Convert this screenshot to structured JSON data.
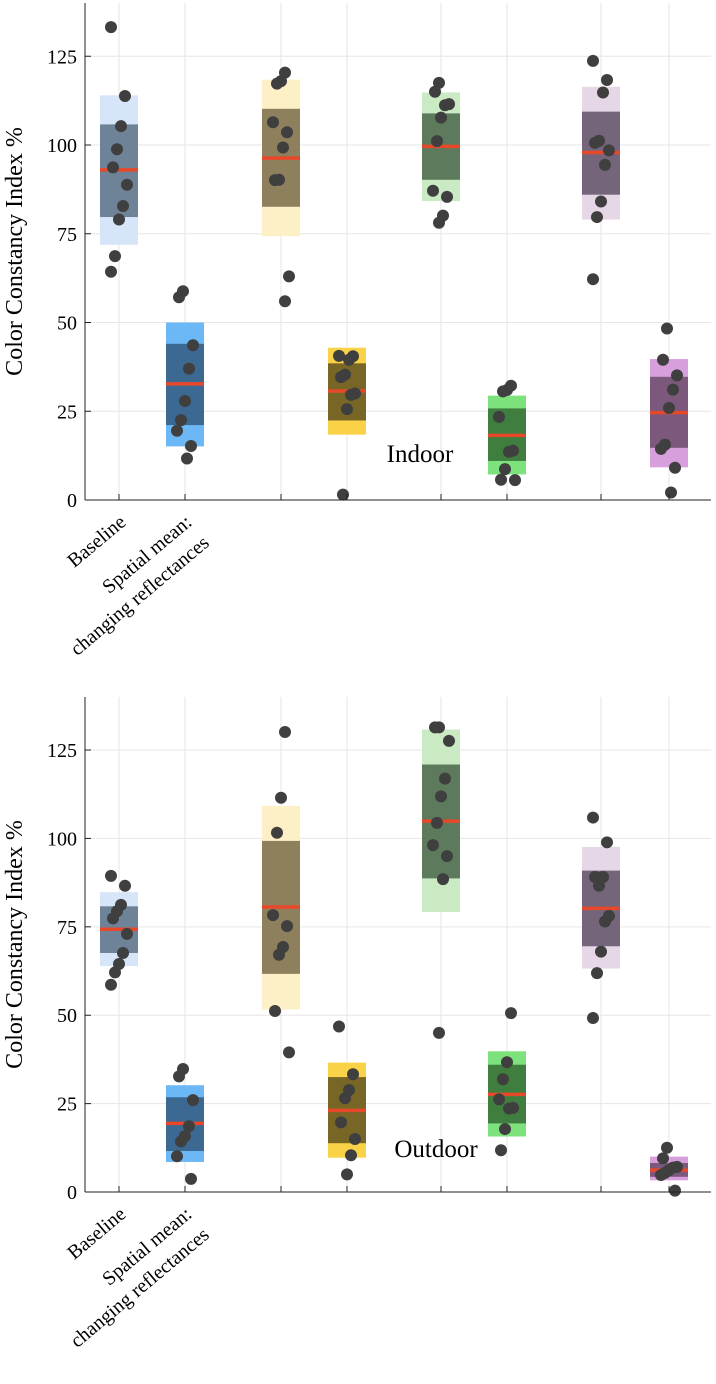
{
  "chart_data": [
    {
      "type": "box",
      "annotation": "Indoor",
      "ylabel": "Color Constancy Index %",
      "ylim": [
        0,
        140
      ],
      "yticks": [
        0,
        25,
        50,
        75,
        100,
        125
      ],
      "categories": [
        "Baseline",
        "Spatial mean: changing reflectances",
        "",
        "",
        "",
        "",
        "",
        ""
      ],
      "groups": [
        {
          "color": "#d6e6f8",
          "inner": "#6e8398",
          "outer": [
            71.9,
            114.0
          ],
          "iqr": [
            79.7,
            105.8
          ],
          "median": 93.0,
          "points": [
            133.2,
            113.8,
            105.3,
            98.8,
            93.7,
            88.8,
            82.8,
            79.0,
            68.7,
            64.3
          ]
        },
        {
          "color": "#6cb8f6",
          "inner": "#3c6992",
          "outer": [
            15.1,
            50.0
          ],
          "iqr": [
            21.1,
            44.0
          ],
          "median": 32.7,
          "points": [
            58.8,
            57.1,
            43.6,
            37.0,
            27.9,
            22.5,
            19.5,
            15.2,
            11.7
          ]
        },
        {
          "color": "#fdf0c6",
          "inner": "#8e7f5d",
          "outer": [
            74.3,
            118.4
          ],
          "iqr": [
            82.6,
            110.2
          ],
          "median": 96.3,
          "points": [
            120.4,
            118.0,
            117.3,
            106.4,
            103.6,
            99.3,
            90.2,
            90.1,
            63.0,
            56.0
          ]
        },
        {
          "color": "#fad248",
          "inner": "#786626",
          "outer": [
            18.4,
            42.9
          ],
          "iqr": [
            22.4,
            38.5
          ],
          "median": 30.7,
          "points": [
            40.6,
            40.5,
            39.5,
            35.3,
            34.6,
            30.0,
            29.6,
            25.6,
            1.5
          ]
        },
        {
          "color": "#caeac4",
          "inner": "#5d7a5c",
          "outer": [
            84.2,
            114.8
          ],
          "iqr": [
            90.2,
            108.9
          ],
          "median": 99.6,
          "points": [
            117.5,
            115.0,
            111.5,
            111.2,
            107.7,
            101.1,
            87.1,
            85.4,
            80.1,
            78.1
          ]
        },
        {
          "color": "#7de27c",
          "inner": "#3f7e3e",
          "outer": [
            7.2,
            29.4
          ],
          "iqr": [
            11.0,
            25.8
          ],
          "median": 18.2,
          "points": [
            32.2,
            31.0,
            30.6,
            23.4,
            13.9,
            13.6,
            8.7,
            5.7,
            5.6
          ]
        },
        {
          "color": "#e6d7e7",
          "inner": "#75657a",
          "outer": [
            79.0,
            116.4
          ],
          "iqr": [
            86.0,
            109.4
          ],
          "median": 97.9,
          "points": [
            123.7,
            118.3,
            114.8,
            101.2,
            100.6,
            98.5,
            94.4,
            84.1,
            79.7,
            62.2
          ]
        },
        {
          "color": "#d79fdc",
          "inner": "#7b587c",
          "outer": [
            9.2,
            39.7
          ],
          "iqr": [
            14.7,
            34.7
          ],
          "median": 24.6,
          "points": [
            48.3,
            39.5,
            35.1,
            31.1,
            25.9,
            15.6,
            14.4,
            9.1,
            2.1
          ]
        }
      ]
    },
    {
      "type": "box",
      "annotation": "Outdoor",
      "ylabel": "Color Constancy Index %",
      "ylim": [
        0,
        140
      ],
      "yticks": [
        0,
        25,
        50,
        75,
        100,
        125
      ],
      "categories": [
        "Baseline",
        "Spatial mean: changing reflectances",
        "",
        "",
        "",
        "",
        "",
        ""
      ],
      "groups": [
        {
          "color": "#d6e6f8",
          "inner": "#6e8398",
          "outer": [
            63.9,
            84.8
          ],
          "iqr": [
            67.6,
            80.8
          ],
          "median": 74.3,
          "points": [
            89.4,
            86.6,
            81.2,
            79.4,
            77.4,
            73.0,
            67.6,
            64.5,
            62.1,
            58.6
          ]
        },
        {
          "color": "#6cb8f6",
          "inner": "#3c6992",
          "outer": [
            8.5,
            30.2
          ],
          "iqr": [
            11.6,
            26.8
          ],
          "median": 19.4,
          "points": [
            34.8,
            32.7,
            26.0,
            18.6,
            15.8,
            14.3,
            10.1,
            3.7
          ]
        },
        {
          "color": "#fdf0c6",
          "inner": "#8e7f5d",
          "outer": [
            51.6,
            109.2
          ],
          "iqr": [
            61.7,
            99.3
          ],
          "median": 80.6,
          "points": [
            130.1,
            111.5,
            101.6,
            78.3,
            75.2,
            69.3,
            67.1,
            51.2,
            39.5
          ]
        },
        {
          "color": "#fad248",
          "inner": "#786626",
          "outer": [
            9.7,
            36.6
          ],
          "iqr": [
            13.8,
            32.5
          ],
          "median": 23.1,
          "points": [
            46.8,
            33.3,
            28.8,
            26.5,
            19.7,
            15.0,
            10.4,
            5.0
          ]
        },
        {
          "color": "#caeac4",
          "inner": "#5d7a5c",
          "outer": [
            79.2,
            130.8
          ],
          "iqr": [
            88.7,
            120.9
          ],
          "median": 104.9,
          "points": [
            131.4,
            131.4,
            127.6,
            116.9,
            111.9,
            104.4,
            98.1,
            95.0,
            88.5,
            45.0
          ]
        },
        {
          "color": "#7de27c",
          "inner": "#3f7e3e",
          "outer": [
            15.7,
            39.8
          ],
          "iqr": [
            19.4,
            36.0
          ],
          "median": 27.6,
          "points": [
            50.6,
            36.7,
            31.9,
            26.2,
            23.8,
            23.6,
            17.8,
            11.8
          ]
        },
        {
          "color": "#e6d7e7",
          "inner": "#75657a",
          "outer": [
            63.2,
            97.6
          ],
          "iqr": [
            69.5,
            90.9
          ],
          "median": 80.2,
          "points": [
            105.9,
            98.9,
            89.1,
            86.6,
            89.1,
            78.1,
            76.5,
            68.0,
            61.9,
            49.2
          ]
        },
        {
          "color": "#d79fdc",
          "inner": "#7b587c",
          "outer": [
            3.3,
            10.0
          ],
          "iqr": [
            4.3,
            8.2
          ],
          "median": 6.2,
          "points": [
            12.5,
            9.5,
            7.1,
            6.9,
            6.2,
            5.4,
            4.8,
            0.4
          ]
        }
      ]
    }
  ]
}
